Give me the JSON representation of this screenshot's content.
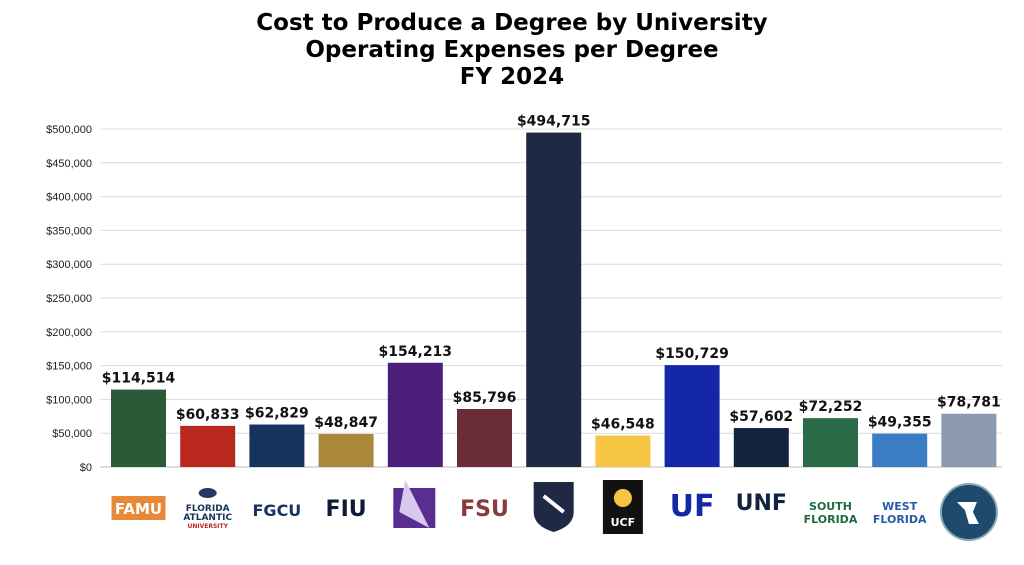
{
  "chart_data": {
    "type": "bar",
    "title": [
      "Cost to Produce a Degree by University",
      "Operating Expenses per Degree",
      "FY 2024"
    ],
    "xlabel": "",
    "ylabel": "",
    "ylim": [
      0,
      500000
    ],
    "yticks": [
      0,
      50000,
      100000,
      150000,
      200000,
      250000,
      300000,
      350000,
      400000,
      450000,
      500000
    ],
    "ytick_labels": [
      "$0",
      "$50,000",
      "$100,000",
      "$150,000",
      "$200,000",
      "$250,000",
      "$300,000",
      "$350,000",
      "$400,000",
      "$450,000",
      "$500,000"
    ],
    "grid": true,
    "categories": [
      "FAMU",
      "FAU",
      "FGCU",
      "FIU",
      "Florida Poly",
      "FSU",
      "New College",
      "UCF",
      "UF",
      "UNF",
      "USF",
      "UWF",
      "Board of Governors"
    ],
    "values": [
      114514,
      60833,
      62829,
      48847,
      154213,
      85796,
      494715,
      46548,
      150729,
      57602,
      72252,
      49355,
      78781
    ],
    "data_labels": [
      "$114,514",
      "$60,833",
      "$62,829",
      "$48,847",
      "$154,213",
      "$85,796",
      "$494,715",
      "$46,548",
      "$150,729",
      "$57,602",
      "$72,252",
      "$49,355",
      "$78,781"
    ],
    "colors": [
      "#2b5a37",
      "#b8281d",
      "#15335f",
      "#a9883c",
      "#4b1f7b",
      "#6c2d3b",
      "#1f2944",
      "#f6c643",
      "#1327a7",
      "#12233e",
      "#2a6a46",
      "#3a7dc5",
      "#8c9ab0"
    ],
    "logos": [
      {
        "text": "FAMU",
        "color": "#e8893a"
      },
      {
        "text": "FLORIDA ATLANTIC UNIVERSITY",
        "color": "#15335f"
      },
      {
        "text": "FGCU",
        "color": "#15335f"
      },
      {
        "text": "FIU",
        "color": "#0d1b3a"
      },
      {
        "text": "FLORIDA POLY",
        "color": "#5a2d91"
      },
      {
        "text": "FSU",
        "color": "#8a3a3a"
      },
      {
        "text": "",
        "color": "#1f2944"
      },
      {
        "text": "UCF",
        "color": "#111111"
      },
      {
        "text": "UF",
        "color": "#1327a7"
      },
      {
        "text": "UNF",
        "color": "#12233e"
      },
      {
        "text": "SOUTH FLORIDA",
        "color": "#1f6a3e"
      },
      {
        "text": "WEST FLORIDA",
        "color": "#2a5aa5"
      },
      {
        "text": "",
        "color": "#1f4a6e"
      }
    ]
  }
}
